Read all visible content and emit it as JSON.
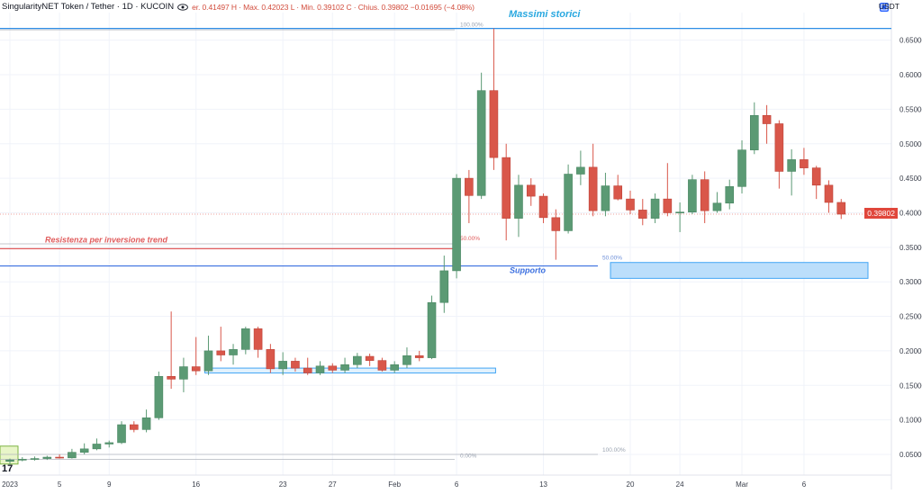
{
  "header": {
    "symbol": "SingularityNET Token / Tether · 1D · KUCOIN",
    "ohlc": "er. 0.41497  H · Max. 0.42023  L · Min. 0.39102  C · Chius. 0.39802  −0.01695 (−4.08%)"
  },
  "axis": {
    "currency": "USDT"
  },
  "price_tag": "0.39802",
  "chart_data": {
    "type": "candlestick",
    "ylim": [
      0.02,
      0.69
    ],
    "price_ticks": [
      "0.65000",
      "0.60000",
      "0.55000",
      "0.50000",
      "0.45000",
      "0.40000",
      "0.35000",
      "0.30000",
      "0.25000",
      "0.20000",
      "0.15000",
      "0.10000",
      "0.05000"
    ],
    "tick_values": [
      0.65,
      0.6,
      0.55,
      0.5,
      0.45,
      0.4,
      0.35,
      0.3,
      0.25,
      0.2,
      0.15,
      0.1,
      0.05
    ],
    "date_labels": [
      "2023",
      "5",
      "9",
      "16",
      "23",
      "27",
      "Feb",
      "6",
      "13",
      "20",
      "24",
      "Mar",
      "6"
    ],
    "date_label_index": [
      0,
      4,
      8,
      15,
      22,
      26,
      31,
      36,
      43,
      50,
      54,
      59,
      64
    ],
    "candles": [
      {
        "o": 0.04,
        "h": 0.044,
        "l": 0.036,
        "c": 0.042
      },
      {
        "o": 0.042,
        "h": 0.046,
        "l": 0.04,
        "c": 0.043
      },
      {
        "o": 0.043,
        "h": 0.047,
        "l": 0.041,
        "c": 0.044
      },
      {
        "o": 0.044,
        "h": 0.048,
        "l": 0.042,
        "c": 0.046
      },
      {
        "o": 0.046,
        "h": 0.05,
        "l": 0.044,
        "c": 0.045
      },
      {
        "o": 0.045,
        "h": 0.058,
        "l": 0.044,
        "c": 0.053
      },
      {
        "o": 0.053,
        "h": 0.066,
        "l": 0.05,
        "c": 0.058
      },
      {
        "o": 0.058,
        "h": 0.073,
        "l": 0.056,
        "c": 0.065
      },
      {
        "o": 0.065,
        "h": 0.07,
        "l": 0.06,
        "c": 0.067
      },
      {
        "o": 0.067,
        "h": 0.098,
        "l": 0.065,
        "c": 0.093
      },
      {
        "o": 0.093,
        "h": 0.098,
        "l": 0.082,
        "c": 0.086
      },
      {
        "o": 0.086,
        "h": 0.115,
        "l": 0.082,
        "c": 0.103
      },
      {
        "o": 0.103,
        "h": 0.17,
        "l": 0.1,
        "c": 0.163
      },
      {
        "o": 0.163,
        "h": 0.257,
        "l": 0.145,
        "c": 0.159
      },
      {
        "o": 0.159,
        "h": 0.19,
        "l": 0.14,
        "c": 0.177
      },
      {
        "o": 0.177,
        "h": 0.22,
        "l": 0.165,
        "c": 0.171
      },
      {
        "o": 0.171,
        "h": 0.222,
        "l": 0.165,
        "c": 0.2
      },
      {
        "o": 0.2,
        "h": 0.235,
        "l": 0.185,
        "c": 0.194
      },
      {
        "o": 0.194,
        "h": 0.21,
        "l": 0.18,
        "c": 0.202
      },
      {
        "o": 0.202,
        "h": 0.235,
        "l": 0.195,
        "c": 0.232
      },
      {
        "o": 0.232,
        "h": 0.235,
        "l": 0.19,
        "c": 0.202
      },
      {
        "o": 0.202,
        "h": 0.21,
        "l": 0.168,
        "c": 0.174
      },
      {
        "o": 0.174,
        "h": 0.198,
        "l": 0.165,
        "c": 0.185
      },
      {
        "o": 0.185,
        "h": 0.19,
        "l": 0.17,
        "c": 0.175
      },
      {
        "o": 0.175,
        "h": 0.19,
        "l": 0.165,
        "c": 0.168
      },
      {
        "o": 0.168,
        "h": 0.185,
        "l": 0.165,
        "c": 0.178
      },
      {
        "o": 0.178,
        "h": 0.182,
        "l": 0.168,
        "c": 0.172
      },
      {
        "o": 0.172,
        "h": 0.19,
        "l": 0.168,
        "c": 0.18
      },
      {
        "o": 0.18,
        "h": 0.197,
        "l": 0.175,
        "c": 0.192
      },
      {
        "o": 0.192,
        "h": 0.196,
        "l": 0.178,
        "c": 0.186
      },
      {
        "o": 0.186,
        "h": 0.19,
        "l": 0.17,
        "c": 0.172
      },
      {
        "o": 0.172,
        "h": 0.185,
        "l": 0.168,
        "c": 0.18
      },
      {
        "o": 0.18,
        "h": 0.205,
        "l": 0.175,
        "c": 0.193
      },
      {
        "o": 0.193,
        "h": 0.2,
        "l": 0.185,
        "c": 0.19
      },
      {
        "o": 0.19,
        "h": 0.28,
        "l": 0.188,
        "c": 0.27
      },
      {
        "o": 0.27,
        "h": 0.338,
        "l": 0.255,
        "c": 0.316
      },
      {
        "o": 0.316,
        "h": 0.456,
        "l": 0.305,
        "c": 0.45
      },
      {
        "o": 0.45,
        "h": 0.462,
        "l": 0.385,
        "c": 0.425
      },
      {
        "o": 0.425,
        "h": 0.603,
        "l": 0.42,
        "c": 0.577
      },
      {
        "o": 0.577,
        "h": 0.667,
        "l": 0.462,
        "c": 0.48
      },
      {
        "o": 0.48,
        "h": 0.5,
        "l": 0.36,
        "c": 0.392
      },
      {
        "o": 0.392,
        "h": 0.455,
        "l": 0.365,
        "c": 0.44
      },
      {
        "o": 0.44,
        "h": 0.45,
        "l": 0.41,
        "c": 0.424
      },
      {
        "o": 0.424,
        "h": 0.428,
        "l": 0.385,
        "c": 0.393
      },
      {
        "o": 0.393,
        "h": 0.405,
        "l": 0.332,
        "c": 0.374
      },
      {
        "o": 0.374,
        "h": 0.47,
        "l": 0.37,
        "c": 0.456
      },
      {
        "o": 0.456,
        "h": 0.49,
        "l": 0.44,
        "c": 0.466
      },
      {
        "o": 0.466,
        "h": 0.5,
        "l": 0.395,
        "c": 0.403
      },
      {
        "o": 0.403,
        "h": 0.458,
        "l": 0.395,
        "c": 0.439
      },
      {
        "o": 0.439,
        "h": 0.455,
        "l": 0.418,
        "c": 0.42
      },
      {
        "o": 0.42,
        "h": 0.432,
        "l": 0.398,
        "c": 0.404
      },
      {
        "o": 0.404,
        "h": 0.42,
        "l": 0.382,
        "c": 0.392
      },
      {
        "o": 0.392,
        "h": 0.428,
        "l": 0.385,
        "c": 0.42
      },
      {
        "o": 0.42,
        "h": 0.472,
        "l": 0.395,
        "c": 0.4
      },
      {
        "o": 0.4,
        "h": 0.415,
        "l": 0.372,
        "c": 0.401
      },
      {
        "o": 0.401,
        "h": 0.455,
        "l": 0.398,
        "c": 0.448
      },
      {
        "o": 0.448,
        "h": 0.46,
        "l": 0.385,
        "c": 0.403
      },
      {
        "o": 0.403,
        "h": 0.43,
        "l": 0.4,
        "c": 0.414
      },
      {
        "o": 0.414,
        "h": 0.448,
        "l": 0.405,
        "c": 0.438
      },
      {
        "o": 0.438,
        "h": 0.505,
        "l": 0.428,
        "c": 0.491
      },
      {
        "o": 0.491,
        "h": 0.56,
        "l": 0.485,
        "c": 0.541
      },
      {
        "o": 0.541,
        "h": 0.556,
        "l": 0.5,
        "c": 0.529
      },
      {
        "o": 0.529,
        "h": 0.534,
        "l": 0.435,
        "c": 0.46
      },
      {
        "o": 0.46,
        "h": 0.492,
        "l": 0.425,
        "c": 0.477
      },
      {
        "o": 0.477,
        "h": 0.494,
        "l": 0.455,
        "c": 0.465
      },
      {
        "o": 0.465,
        "h": 0.468,
        "l": 0.42,
        "c": 0.44
      },
      {
        "o": 0.44,
        "h": 0.447,
        "l": 0.4,
        "c": 0.415
      },
      {
        "o": 0.415,
        "h": 0.42,
        "l": 0.391,
        "c": 0.398
      }
    ],
    "annotations": {
      "ath_label": "Massimi storici",
      "ath_price": 0.667,
      "resistance_label": "Resistenza per inversione trend",
      "resistance_price": 0.348,
      "support_label": "Supporto",
      "support_price": 0.323,
      "support_zone": [
        0.305,
        0.328
      ],
      "consolidation_zone": [
        0.168,
        0.175
      ],
      "early_zone": [
        0.036,
        0.062
      ],
      "fib_a": {
        "p100": 0.667,
        "p50": 0.355,
        "p0": 0.043,
        "labels": [
          "100.00%",
          "50.00%",
          "0.00%"
        ]
      },
      "fib_b": {
        "p50": 0.328,
        "p100": 0.05,
        "labels": [
          "50.00%",
          "100.00%"
        ]
      },
      "last_close": 0.39802
    },
    "colors": {
      "up": "#5b9a74",
      "down": "#d9574a",
      "ath": "#2e8ee6",
      "resistance": "#e05b5b",
      "support": "#3b6fe0",
      "zone_fill": "#bbdefb",
      "zone_stroke": "#42a5f5",
      "axis_text": "#3a3f4b",
      "fib_text": "#9aa3b1",
      "grid": "#f0f3fa"
    }
  }
}
